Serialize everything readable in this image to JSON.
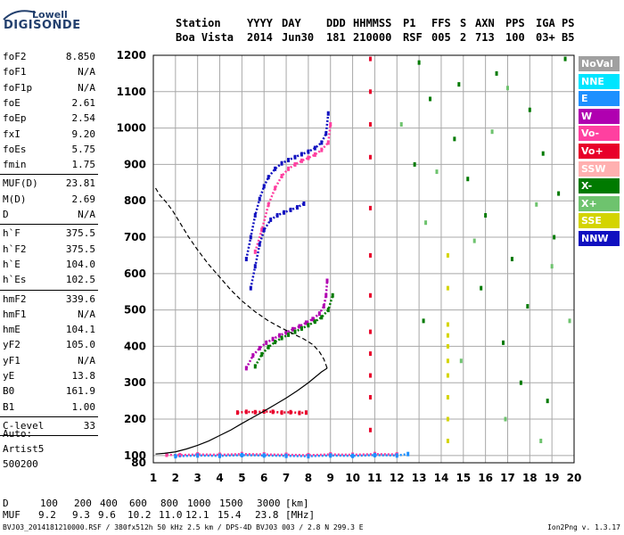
{
  "logo": {
    "line1": "Lowell",
    "line2": "DIGISONDE"
  },
  "header": {
    "labels": [
      "Station",
      "YYYY",
      "DAY",
      "DDD",
      "HHMMSS",
      "P1",
      "FFS",
      "S",
      "AXN",
      "PPS",
      "IGA",
      "PS"
    ],
    "values": [
      "Boa Vista",
      "2014",
      "Jun30",
      "181",
      "210000",
      "RSF",
      "005",
      "2",
      "713",
      "100",
      "03+",
      "B5"
    ]
  },
  "parameters": [
    {
      "name": "foF2",
      "value": "8.850"
    },
    {
      "name": "foF1",
      "value": "N/A"
    },
    {
      "name": "foF1p",
      "value": "N/A"
    },
    {
      "name": "foE",
      "value": "2.61"
    },
    {
      "name": "foEp",
      "value": "2.54"
    },
    {
      "name": "fxI",
      "value": "9.20"
    },
    {
      "name": "foEs",
      "value": "5.75"
    },
    {
      "name": "fmin",
      "value": "1.75"
    },
    {
      "name": "MUF(D)",
      "value": "23.81"
    },
    {
      "name": "M(D)",
      "value": "2.69"
    },
    {
      "name": "D",
      "value": "N/A"
    },
    {
      "name": "h`F",
      "value": "375.5"
    },
    {
      "name": "h`F2",
      "value": "375.5"
    },
    {
      "name": "h`E",
      "value": "104.0"
    },
    {
      "name": "h`Es",
      "value": "102.5"
    },
    {
      "name": "hmF2",
      "value": "339.6"
    },
    {
      "name": "hmF1",
      "value": "N/A"
    },
    {
      "name": "hmE",
      "value": "104.1"
    },
    {
      "name": "yF2",
      "value": "105.0"
    },
    {
      "name": "yF1",
      "value": "N/A"
    },
    {
      "name": "yE",
      "value": "13.8"
    },
    {
      "name": "B0",
      "value": "161.9"
    },
    {
      "name": "B1",
      "value": "1.00"
    },
    {
      "name": "C-level",
      "value": "33"
    }
  ],
  "auto": {
    "line1": "Auto:",
    "line2": "Artist5",
    "line3": "500200"
  },
  "muf_table": {
    "d_label": "D",
    "d_values": [
      "100",
      "200",
      "400",
      "600",
      "800",
      "1000",
      "1500",
      "3000"
    ],
    "d_unit": "[km]",
    "muf_label": "MUF",
    "muf_values": [
      "9.2",
      "9.3",
      "9.6",
      "10.2",
      "11.0",
      "12.1",
      "15.4",
      "23.8"
    ],
    "muf_unit": "[MHz]"
  },
  "footer": "BVJ03_2014181210000.RSF / 380fx512h 50 kHz 2.5 km / DPS-4D BVJ03 003 / 2.8 N 299.3 E",
  "version": "Ion2Png v. 1.3.17",
  "legend": [
    {
      "label": "NoVal",
      "color": "#a0a0a0"
    },
    {
      "label": "NNE",
      "color": "#00e5ff"
    },
    {
      "label": "E",
      "color": "#1e90ff"
    },
    {
      "label": "W",
      "color": "#b000b0"
    },
    {
      "label": "Vo-",
      "color": "#ff40a0"
    },
    {
      "label": "Vo+",
      "color": "#e8002a"
    },
    {
      "label": "SSW",
      "color": "#ffb0b0"
    },
    {
      "label": "X-",
      "color": "#007a00"
    },
    {
      "label": "X+",
      "color": "#6ec36e"
    },
    {
      "label": "SSE",
      "color": "#d4d400"
    },
    {
      "label": "NNW",
      "color": "#1010c0"
    }
  ],
  "chart_data": {
    "type": "scatter",
    "title": "",
    "xlabel": "",
    "ylabel": "",
    "xlim": [
      1,
      20
    ],
    "ylim": [
      80,
      1200
    ],
    "xticks": [
      1,
      2,
      3,
      4,
      5,
      6,
      7,
      8,
      9,
      10,
      11,
      12,
      13,
      14,
      15,
      16,
      17,
      18,
      19,
      20
    ],
    "yticks": [
      100,
      200,
      300,
      400,
      500,
      600,
      700,
      800,
      900,
      1000,
      1100,
      1200
    ],
    "ytick_labels": [
      "100",
      "200",
      "300",
      "400",
      "500",
      "600",
      "700",
      "800",
      "900",
      "1000",
      "1100",
      "1200"
    ],
    "y_extra_label": "80",
    "grid": true,
    "profile_solid": {
      "x": [
        1.1,
        1.5,
        2.0,
        2.5,
        3.0,
        3.5,
        4.0,
        4.5,
        5.0,
        5.5,
        6.0,
        6.5,
        7.0,
        7.5,
        8.0,
        8.3,
        8.6,
        8.8,
        8.85
      ],
      "y": [
        104,
        106,
        110,
        118,
        128,
        140,
        155,
        170,
        188,
        205,
        222,
        240,
        258,
        278,
        300,
        315,
        330,
        338,
        340
      ]
    },
    "profile_dashed": {
      "x": [
        8.85,
        8.7,
        8.5,
        8.2,
        7.8,
        7.3,
        6.8,
        6.2,
        5.6,
        5.0,
        4.5,
        4.0,
        3.5,
        3.0,
        2.6,
        2.2,
        1.9,
        1.6,
        1.3,
        1.1
      ],
      "y": [
        340,
        365,
        385,
        405,
        420,
        435,
        450,
        470,
        495,
        525,
        555,
        590,
        625,
        665,
        700,
        740,
        770,
        795,
        815,
        835
      ]
    },
    "traces": [
      {
        "name": "F2 O-mode",
        "color": "#b000b0",
        "x": [
          5.2,
          5.5,
          5.8,
          6.1,
          6.4,
          6.7,
          7.0,
          7.3,
          7.6,
          7.9,
          8.2,
          8.5,
          8.7,
          8.8,
          8.85
        ],
        "y": [
          340,
          375,
          395,
          410,
          420,
          430,
          438,
          447,
          455,
          465,
          475,
          490,
          510,
          540,
          580
        ]
      },
      {
        "name": "F2 X-mode",
        "color": "#007a00",
        "x": [
          5.6,
          5.9,
          6.2,
          6.5,
          6.8,
          7.1,
          7.4,
          7.7,
          8.0,
          8.3,
          8.6,
          8.9,
          9.1
        ],
        "y": [
          345,
          378,
          398,
          412,
          423,
          432,
          440,
          449,
          458,
          468,
          480,
          500,
          540
        ]
      },
      {
        "name": "F2 multihop",
        "color": "#1010c0",
        "x": [
          5.2,
          5.4,
          5.6,
          5.8,
          6.0,
          6.2,
          6.5,
          6.8,
          7.1,
          7.4,
          7.7,
          8.0,
          8.3,
          8.6,
          8.8,
          8.9
        ],
        "y": [
          640,
          700,
          760,
          805,
          840,
          865,
          888,
          903,
          912,
          920,
          928,
          935,
          945,
          960,
          985,
          1040
        ]
      },
      {
        "name": "F2 multihop X",
        "color": "#ff40a0",
        "x": [
          5.6,
          5.9,
          6.2,
          6.5,
          6.8,
          7.1,
          7.4,
          7.7,
          8.0,
          8.3,
          8.6,
          8.9,
          9.0
        ],
        "y": [
          660,
          720,
          790,
          835,
          868,
          888,
          900,
          910,
          918,
          927,
          940,
          960,
          1010
        ]
      },
      {
        "name": "F2 second multihop",
        "color": "#1010c0",
        "x": [
          5.4,
          5.6,
          5.8,
          6.0,
          6.3,
          6.6,
          6.9,
          7.2,
          7.5,
          7.8
        ],
        "y": [
          560,
          620,
          680,
          720,
          748,
          760,
          768,
          775,
          782,
          792
        ]
      },
      {
        "name": "Es 210",
        "color": "#e8002a",
        "x": [
          4.8,
          5.2,
          5.6,
          6.0,
          6.4,
          6.8,
          7.2,
          7.6,
          7.9
        ],
        "y": [
          218,
          220,
          219,
          221,
          220,
          218,
          219,
          217,
          218
        ]
      },
      {
        "name": "E-layer",
        "color": "#ff40a0",
        "x": [
          1.6,
          2.2,
          3.0,
          4.0,
          5.0,
          6.0,
          7.0,
          8.0,
          9.0,
          10.0,
          11.0,
          12.0
        ],
        "y": [
          102,
          101,
          103,
          102,
          104,
          103,
          102,
          101,
          103,
          102,
          104,
          103
        ]
      },
      {
        "name": "E-layer X",
        "color": "#1e90ff",
        "x": [
          2.0,
          3.0,
          4.0,
          5.0,
          6.0,
          7.0,
          8.0,
          9.0,
          10.0,
          11.0,
          12.0,
          12.5
        ],
        "y": [
          98,
          100,
          99,
          101,
          100,
          99,
          98,
          100,
          99,
          101,
          100,
          104
        ]
      },
      {
        "name": "noise 10.8MHz",
        "color": "#e8002a",
        "x": [
          10.8,
          10.8,
          10.8,
          10.8,
          10.8,
          10.8,
          10.8,
          10.8,
          10.8,
          10.8,
          10.8,
          10.8
        ],
        "y": [
          1190,
          1100,
          1010,
          920,
          780,
          650,
          540,
          440,
          380,
          320,
          260,
          170
        ]
      },
      {
        "name": "noise 14.3MHz",
        "color": "#d4d400",
        "x": [
          14.3,
          14.3,
          14.3,
          14.3,
          14.3,
          14.3,
          14.3,
          14.3,
          14.3,
          14.3
        ],
        "y": [
          650,
          560,
          460,
          430,
          400,
          360,
          320,
          260,
          200,
          140
        ]
      },
      {
        "name": "scatter",
        "color": "#007a00",
        "x": [
          13.0,
          13.5,
          14.6,
          15.2,
          16.0,
          16.5,
          17.2,
          18.0,
          18.6,
          19.3,
          19.6,
          13.2,
          15.8,
          17.6,
          18.8,
          16.8,
          12.8,
          19.1,
          14.8,
          17.9
        ],
        "y": [
          1180,
          1080,
          970,
          860,
          760,
          1150,
          640,
          1050,
          930,
          820,
          1190,
          470,
          560,
          300,
          250,
          410,
          900,
          700,
          1120,
          510
        ]
      },
      {
        "name": "scatter 2",
        "color": "#6ec36e",
        "x": [
          12.2,
          13.8,
          15.5,
          16.3,
          17.0,
          18.3,
          19.0,
          19.8,
          14.9,
          16.9,
          18.5,
          13.3
        ],
        "y": [
          1010,
          880,
          690,
          990,
          1110,
          790,
          620,
          470,
          360,
          200,
          140,
          740
        ]
      }
    ]
  }
}
